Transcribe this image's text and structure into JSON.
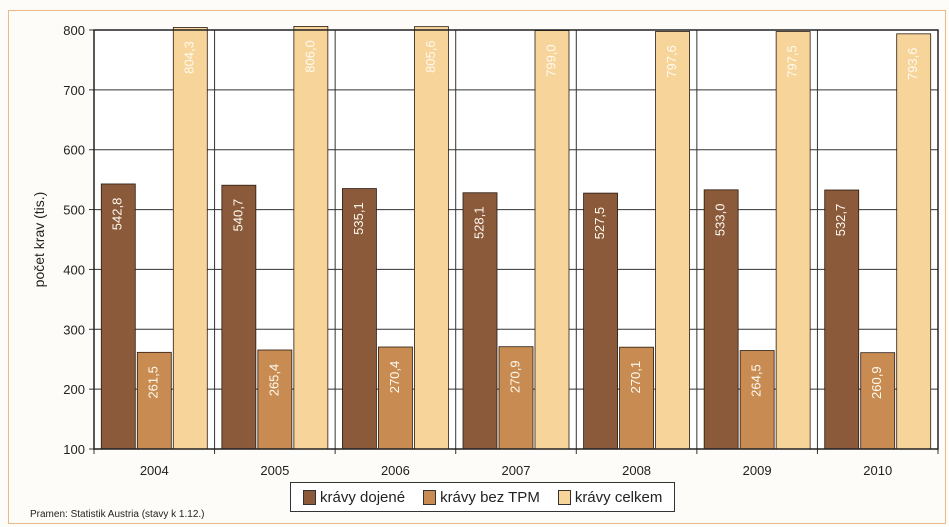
{
  "chart_data": {
    "type": "bar",
    "categories": [
      "2004",
      "2005",
      "2006",
      "2007",
      "2008",
      "2009",
      "2010"
    ],
    "series": [
      {
        "name": "krávy dojené",
        "color": "#8a5a3a",
        "values": [
          542.8,
          540.7,
          535.1,
          528.1,
          527.5,
          533.0,
          532.7
        ],
        "labels": [
          "542,8",
          "540,7",
          "535,1",
          "528,1",
          "527,5",
          "533,0",
          "532,7"
        ]
      },
      {
        "name": "krávy bez TPM",
        "color": "#c88c52",
        "values": [
          261.5,
          265.4,
          270.4,
          270.9,
          270.1,
          264.5,
          260.9
        ],
        "labels": [
          "261,5",
          "265,4",
          "270,4",
          "270,9",
          "270,1",
          "264,5",
          "260,9"
        ]
      },
      {
        "name": "krávy celkem",
        "color": "#f7d49a",
        "values": [
          804.3,
          806.0,
          805.6,
          799.0,
          797.6,
          797.5,
          793.6
        ],
        "labels": [
          "804,3",
          "806,0",
          "805,6",
          "799,0",
          "797,6",
          "797,5",
          "793,6"
        ]
      }
    ],
    "ylabel": "počet krav (tis.)",
    "ylim": [
      100,
      800
    ],
    "yticks": [
      100,
      200,
      300,
      400,
      500,
      600,
      700,
      800
    ],
    "grid": true,
    "legend": "bottom"
  },
  "source": "Pramen: Statistik Austria (stavy k 1.12.)"
}
